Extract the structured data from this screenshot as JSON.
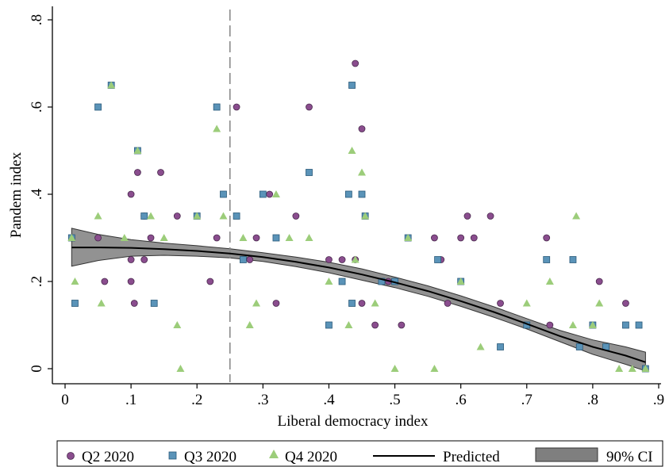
{
  "chart_data": {
    "type": "scatter",
    "xlabel": "Liberal democracy index",
    "ylabel": "Pandem index",
    "xlim": [
      0,
      0.9
    ],
    "ylim": [
      0,
      0.8
    ],
    "x_ticks": [
      "0",
      ".1",
      ".2",
      ".3",
      ".4",
      ".5",
      ".6",
      ".7",
      ".8",
      ".9"
    ],
    "y_ticks": [
      "0",
      ".2",
      ".4",
      ".6",
      ".8"
    ],
    "grid": false,
    "reference_line": {
      "x": 0.25,
      "style": "dashed"
    },
    "legend_position": "bottom",
    "colors": {
      "q2": "#8a4d8e",
      "q3": "#5a93b8",
      "q4": "#9ccd7a",
      "predicted": "#000000",
      "ci": "#7f7f7f"
    },
    "series": [
      {
        "name": "Q2 2020",
        "marker": "circle",
        "x": [
          0.05,
          0.06,
          0.1,
          0.11,
          0.1,
          0.12,
          0.12,
          0.145,
          0.1,
          0.105,
          0.13,
          0.17,
          0.22,
          0.23,
          0.26,
          0.28,
          0.29,
          0.32,
          0.31,
          0.35,
          0.37,
          0.4,
          0.42,
          0.44,
          0.45,
          0.44,
          0.45,
          0.47,
          0.49,
          0.51,
          0.56,
          0.57,
          0.58,
          0.6,
          0.61,
          0.62,
          0.645,
          0.66,
          0.73,
          0.735,
          0.81,
          0.85
        ],
        "y": [
          0.3,
          0.2,
          0.4,
          0.45,
          0.25,
          0.35,
          0.25,
          0.45,
          0.2,
          0.15,
          0.3,
          0.35,
          0.2,
          0.3,
          0.6,
          0.25,
          0.3,
          0.15,
          0.4,
          0.35,
          0.6,
          0.25,
          0.25,
          0.7,
          0.55,
          0.25,
          0.15,
          0.1,
          0.2,
          0.1,
          0.3,
          0.25,
          0.15,
          0.3,
          0.35,
          0.3,
          0.35,
          0.15,
          0.3,
          0.1,
          0.2,
          0.15
        ]
      },
      {
        "name": "Q3 2020",
        "marker": "square",
        "x": [
          0.01,
          0.015,
          0.05,
          0.07,
          0.11,
          0.12,
          0.135,
          0.2,
          0.23,
          0.24,
          0.26,
          0.27,
          0.3,
          0.32,
          0.37,
          0.4,
          0.42,
          0.43,
          0.435,
          0.435,
          0.45,
          0.455,
          0.48,
          0.5,
          0.52,
          0.565,
          0.6,
          0.66,
          0.7,
          0.73,
          0.77,
          0.78,
          0.8,
          0.82,
          0.85,
          0.87,
          0.88
        ],
        "y": [
          0.3,
          0.15,
          0.6,
          0.65,
          0.5,
          0.35,
          0.15,
          0.35,
          0.6,
          0.4,
          0.35,
          0.25,
          0.4,
          0.3,
          0.45,
          0.1,
          0.2,
          0.4,
          0.65,
          0.15,
          0.4,
          0.35,
          0.2,
          0.2,
          0.3,
          0.25,
          0.2,
          0.05,
          0.1,
          0.25,
          0.25,
          0.05,
          0.1,
          0.05,
          0.1,
          0.1,
          0.0
        ]
      },
      {
        "name": "Q4 2020",
        "marker": "triangle",
        "x": [
          0.01,
          0.015,
          0.05,
          0.055,
          0.07,
          0.09,
          0.11,
          0.13,
          0.15,
          0.17,
          0.175,
          0.2,
          0.23,
          0.24,
          0.27,
          0.28,
          0.29,
          0.32,
          0.34,
          0.37,
          0.4,
          0.43,
          0.435,
          0.44,
          0.45,
          0.455,
          0.47,
          0.5,
          0.52,
          0.56,
          0.6,
          0.63,
          0.7,
          0.735,
          0.77,
          0.775,
          0.8,
          0.81,
          0.84,
          0.86,
          0.88
        ],
        "y": [
          0.3,
          0.2,
          0.35,
          0.15,
          0.65,
          0.3,
          0.5,
          0.35,
          0.3,
          0.1,
          0.0,
          0.35,
          0.55,
          0.35,
          0.3,
          0.1,
          0.15,
          0.4,
          0.3,
          0.3,
          0.2,
          0.1,
          0.5,
          0.25,
          0.45,
          0.35,
          0.15,
          0.0,
          0.3,
          0.0,
          0.2,
          0.05,
          0.15,
          0.2,
          0.1,
          0.35,
          0.1,
          0.15,
          0.0,
          0.0,
          0.0
        ]
      },
      {
        "name": "Predicted",
        "type": "line",
        "x": [
          0.01,
          0.05,
          0.1,
          0.15,
          0.2,
          0.25,
          0.3,
          0.35,
          0.4,
          0.45,
          0.5,
          0.55,
          0.6,
          0.65,
          0.7,
          0.75,
          0.8,
          0.85,
          0.88
        ],
        "y": [
          0.278,
          0.278,
          0.277,
          0.274,
          0.27,
          0.264,
          0.256,
          0.245,
          0.232,
          0.216,
          0.198,
          0.178,
          0.155,
          0.13,
          0.103,
          0.075,
          0.05,
          0.03,
          0.015
        ]
      },
      {
        "name": "90% CI",
        "type": "band",
        "x": [
          0.01,
          0.05,
          0.1,
          0.15,
          0.2,
          0.25,
          0.3,
          0.35,
          0.4,
          0.45,
          0.5,
          0.55,
          0.6,
          0.65,
          0.7,
          0.75,
          0.8,
          0.85,
          0.88
        ],
        "lower": [
          0.235,
          0.248,
          0.258,
          0.26,
          0.258,
          0.254,
          0.246,
          0.234,
          0.22,
          0.203,
          0.186,
          0.166,
          0.143,
          0.118,
          0.091,
          0.062,
          0.033,
          0.01,
          -0.005
        ],
        "upper": [
          0.322,
          0.308,
          0.296,
          0.288,
          0.282,
          0.275,
          0.266,
          0.256,
          0.244,
          0.229,
          0.21,
          0.19,
          0.167,
          0.142,
          0.115,
          0.088,
          0.066,
          0.05,
          0.038
        ]
      }
    ]
  }
}
